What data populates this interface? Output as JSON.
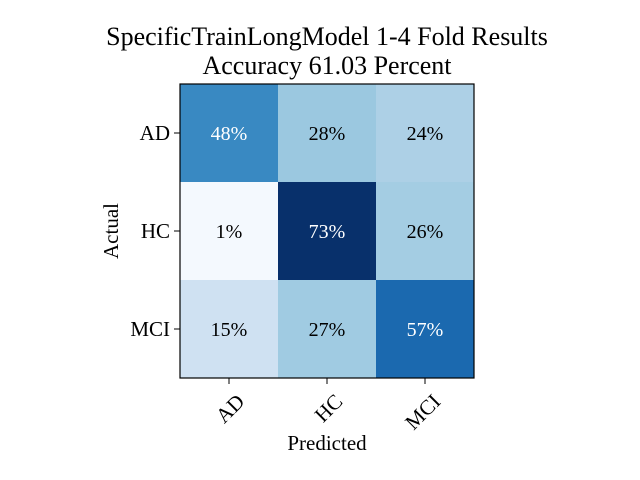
{
  "chart_data": {
    "type": "heatmap",
    "title_line1": "SpecificTrainLongModel 1-4 Fold Results",
    "title_line2": "Accuracy 61.03 Percent",
    "xlabel": "Predicted",
    "ylabel": "Actual",
    "x_categories": [
      "AD",
      "HC",
      "MCI"
    ],
    "y_categories": [
      "AD",
      "HC",
      "MCI"
    ],
    "values": [
      [
        48,
        28,
        24
      ],
      [
        1,
        73,
        26
      ],
      [
        15,
        27,
        57
      ]
    ],
    "labels": [
      [
        "48%",
        "28%",
        "24%"
      ],
      [
        "1%",
        "73%",
        "26%"
      ],
      [
        "15%",
        "27%",
        "57%"
      ]
    ],
    "value_range": [
      0,
      73
    ],
    "colormap": "Blues",
    "colors": {
      "low": "#f7fbff",
      "high": "#08306b",
      "text_dark": "#000000",
      "text_light": "#ffffff"
    },
    "grid": false
  }
}
